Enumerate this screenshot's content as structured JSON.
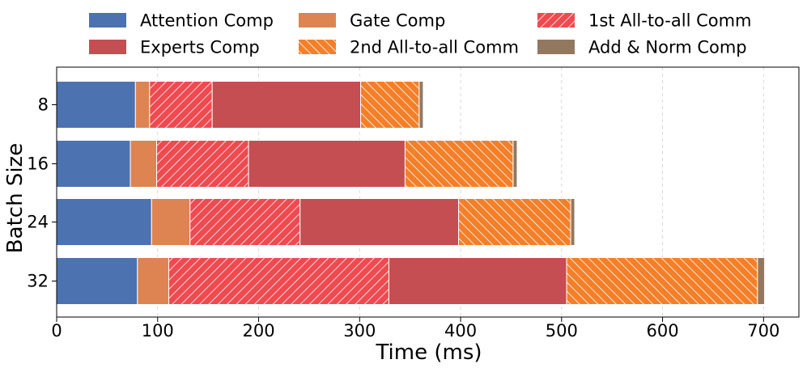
{
  "chart_data": {
    "type": "bar",
    "orientation": "horizontal",
    "stacked": true,
    "xlabel": "Time (ms)",
    "ylabel": "Batch Size",
    "xlim": [
      0,
      735
    ],
    "xticks": [
      0,
      100,
      200,
      300,
      400,
      500,
      600,
      700
    ],
    "grid": "vertical dashed",
    "legend_placement": "top, outside plot, 3 columns",
    "categories": [
      "8",
      "16",
      "24",
      "32"
    ],
    "series": [
      {
        "name": "Attention Comp",
        "color": "#4c72b0",
        "pattern": "solid",
        "values": [
          78,
          73,
          94,
          80
        ]
      },
      {
        "name": "Gate Comp",
        "color": "#dd8452",
        "pattern": "solid",
        "values": [
          14,
          26,
          38,
          31
        ]
      },
      {
        "name": "1st All-to-all Comm",
        "color": "#ef4a50",
        "pattern": "hatch-forward",
        "values": [
          62,
          91,
          109,
          218
        ]
      },
      {
        "name": "Experts Comp",
        "color": "#c44e52",
        "pattern": "solid",
        "values": [
          147,
          155,
          157,
          176
        ]
      },
      {
        "name": "2nd All-to-all Comm",
        "color": "#f47f29",
        "pattern": "hatch-backward",
        "values": [
          58,
          107,
          111,
          189
        ]
      },
      {
        "name": "Add & Norm Comp",
        "color": "#937860",
        "pattern": "solid",
        "values": [
          4,
          4,
          4,
          7
        ]
      }
    ]
  }
}
